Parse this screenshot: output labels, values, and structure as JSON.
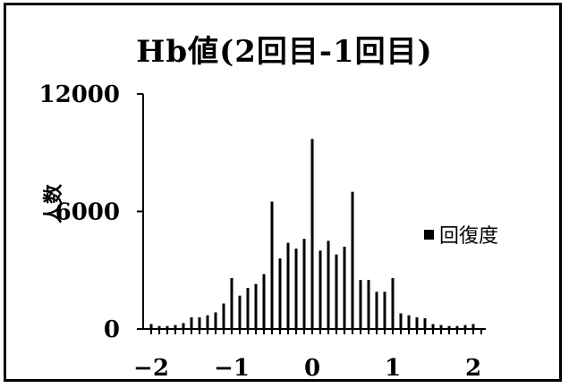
{
  "chart_data": {
    "type": "bar",
    "title": "Hb値(2回目-1回目)",
    "xlabel": "",
    "ylabel": "人数",
    "ylim": [
      0,
      12000
    ],
    "yticks": [
      0,
      6000,
      12000
    ],
    "xticks": [
      -2,
      -1,
      0,
      1,
      2
    ],
    "legend": {
      "position": "right",
      "label": "回復度"
    },
    "grid": false,
    "series": [
      {
        "name": "回復度",
        "x": [
          -2.0,
          -1.9,
          -1.8,
          -1.7,
          -1.6,
          -1.5,
          -1.4,
          -1.3,
          -1.2,
          -1.1,
          -1.0,
          -0.9,
          -0.8,
          -0.7,
          -0.6,
          -0.5,
          -0.4,
          -0.3,
          -0.2,
          -0.1,
          0.0,
          0.1,
          0.2,
          0.3,
          0.4,
          0.5,
          0.6,
          0.7,
          0.8,
          0.9,
          1.0,
          1.1,
          1.2,
          1.3,
          1.4,
          1.5,
          1.6,
          1.7,
          1.8,
          1.9,
          2.0
        ],
        "values": [
          250,
          150,
          150,
          200,
          300,
          600,
          600,
          700,
          850,
          1300,
          2600,
          1700,
          2100,
          2300,
          2800,
          6500,
          3600,
          4400,
          4100,
          4600,
          9700,
          4000,
          4500,
          3800,
          4200,
          7000,
          2500,
          2500,
          1900,
          1900,
          2600,
          800,
          700,
          600,
          550,
          250,
          200,
          150,
          150,
          200,
          250
        ]
      }
    ]
  }
}
